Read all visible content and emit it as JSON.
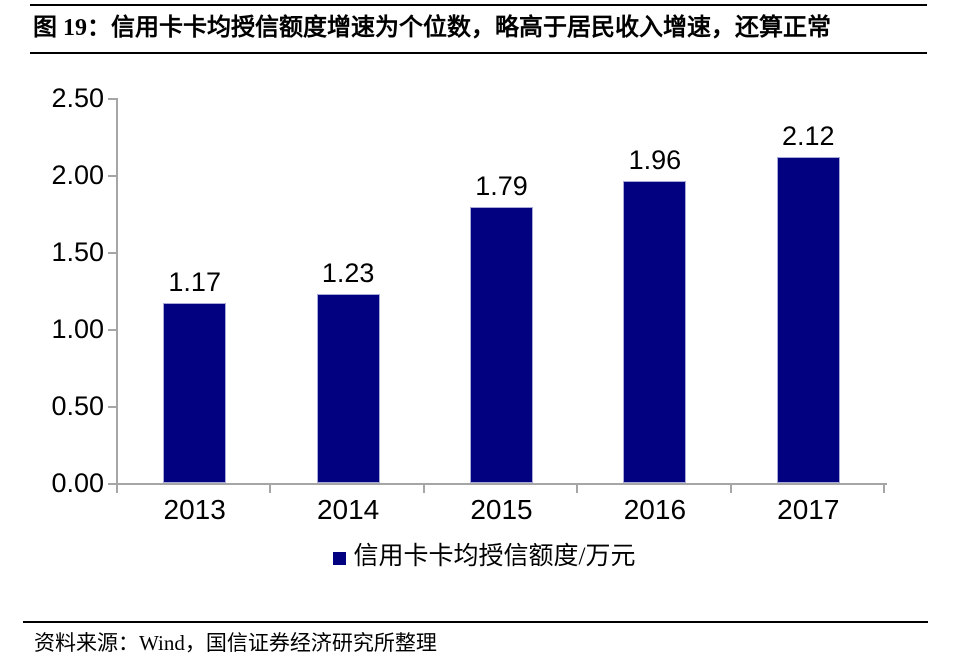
{
  "header": {
    "title": "图 19：信用卡卡均授信额度增速为个位数，略高于居民收入增速，还算正常"
  },
  "chart_data": {
    "type": "bar",
    "categories": [
      "2013",
      "2014",
      "2015",
      "2016",
      "2017"
    ],
    "values": [
      1.17,
      1.23,
      1.79,
      1.96,
      2.12
    ],
    "data_labels": [
      "1.17",
      "1.23",
      "1.79",
      "1.96",
      "2.12"
    ],
    "series_name": "信用卡卡均授信额度/万元",
    "title": "",
    "xlabel": "",
    "ylabel": "",
    "ylim": [
      0,
      2.5
    ],
    "y_tick_values": [
      2.5,
      2.0,
      1.5,
      1.0,
      0.5,
      0.0
    ],
    "y_tick_labels": [
      "2.50",
      "2.00",
      "1.50",
      "1.00",
      "0.50",
      "0.00"
    ],
    "grid": false,
    "legend_position": "bottom",
    "bar_color": "#020280",
    "axis_color": "#a6a6a6"
  },
  "legend": {
    "label": "信用卡卡均授信额度/万元",
    "marker_color": "#020280"
  },
  "footer": {
    "source": "资料来源：Wind，国信证券经济研究所整理"
  }
}
